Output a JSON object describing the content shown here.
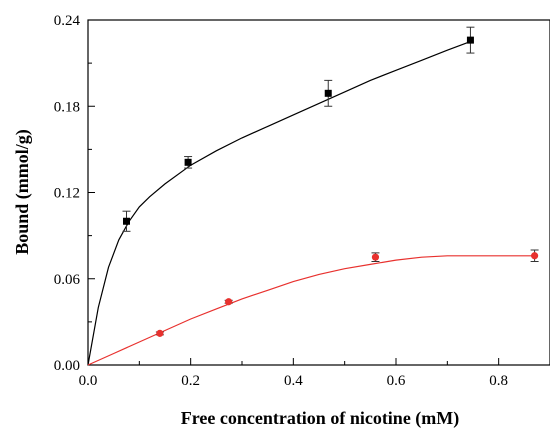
{
  "chart_data": {
    "type": "scatter",
    "xlabel": "Free concentration of nicotine (mM)",
    "ylabel": "Bound (mmol/g)",
    "xlim": [
      0.0,
      0.9
    ],
    "ylim": [
      0.0,
      0.24
    ],
    "x_ticks": [
      "0.0",
      "0.2",
      "0.4",
      "0.6",
      "0.8"
    ],
    "y_ticks": [
      "0.00",
      "0.06",
      "0.12",
      "0.18",
      "0.24"
    ],
    "grid": false,
    "series": [
      {
        "marker": "square",
        "color": "#000000",
        "x": [
          0.075,
          0.195,
          0.468,
          0.745
        ],
        "y": [
          0.1,
          0.141,
          0.189,
          0.226
        ],
        "error": [
          0.007,
          0.004,
          0.009,
          0.009
        ],
        "fit_x": [
          0,
          0.02,
          0.04,
          0.06,
          0.08,
          0.1,
          0.12,
          0.15,
          0.2,
          0.25,
          0.3,
          0.35,
          0.4,
          0.45,
          0.5,
          0.55,
          0.6,
          0.65,
          0.7,
          0.745
        ],
        "fit_y": [
          0,
          0.04,
          0.068,
          0.087,
          0.1,
          0.11,
          0.117,
          0.126,
          0.139,
          0.149,
          0.158,
          0.166,
          0.174,
          0.182,
          0.19,
          0.198,
          0.205,
          0.212,
          0.219,
          0.225
        ]
      },
      {
        "marker": "circle",
        "color": "#e8312e",
        "x": [
          0.14,
          0.274,
          0.56,
          0.87
        ],
        "y": [
          0.022,
          0.044,
          0.075,
          0.076
        ],
        "error": [
          0.001,
          0.001,
          0.003,
          0.004
        ],
        "fit_x": [
          0,
          0.05,
          0.1,
          0.15,
          0.2,
          0.25,
          0.3,
          0.35,
          0.4,
          0.45,
          0.5,
          0.55,
          0.6,
          0.65,
          0.7,
          0.75,
          0.8,
          0.87
        ],
        "fit_y": [
          0,
          0.008,
          0.016,
          0.024,
          0.032,
          0.039,
          0.046,
          0.052,
          0.058,
          0.063,
          0.067,
          0.07,
          0.073,
          0.075,
          0.076,
          0.076,
          0.076,
          0.076
        ]
      }
    ]
  }
}
